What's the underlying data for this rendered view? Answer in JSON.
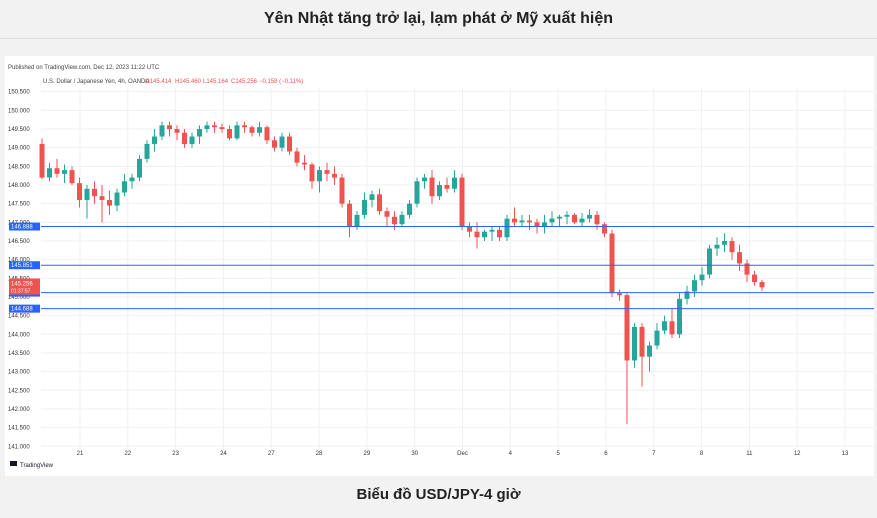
{
  "page": {
    "title": "Yên Nhật tăng trở lại, lạm phát ở Mỹ xuất hiện",
    "caption": "Biểu đồ USD/JPY-4 giờ"
  },
  "colors": {
    "up": "#26a69a",
    "down": "#ef5350",
    "hline": "#2962ff",
    "grid": "#eef0f3",
    "axis_text": "#333333"
  },
  "chart_data": {
    "type": "candlestick",
    "published": "Published on TradingView.com, Dec 12, 2023 11:22 UTC",
    "symbol": "U.S. Dollar / Japanese Yen, 4h, OANDA",
    "ohlc": {
      "o": "O145.414",
      "h": "H145.460",
      "l": "L145.164",
      "c": "C145.256",
      "chg": "−0.158 (−0.11%)"
    },
    "watermark": "TradingView",
    "ylim": [
      140.9,
      150.6
    ],
    "y_ticks": [
      "150.500",
      "150.000",
      "149.500",
      "149.000",
      "148.500",
      "148.000",
      "147.500",
      "147.000",
      "146.500",
      "146.000",
      "145.500",
      "145.000",
      "144.500",
      "144.000",
      "143.500",
      "143.000",
      "142.500",
      "142.000",
      "141.500",
      "141.000"
    ],
    "x_labels": [
      "21",
      "22",
      "23",
      "24",
      "27",
      "28",
      "29",
      "30",
      "Dec",
      "4",
      "5",
      "6",
      "7",
      "8",
      "11",
      "12",
      "13"
    ],
    "levels": [
      {
        "value": 146.888,
        "label": "146.888"
      },
      {
        "value": 145.851,
        "label": "145.851"
      },
      {
        "value": 145.118,
        "label": "145.118"
      },
      {
        "value": 144.688,
        "label": "144.688"
      }
    ],
    "last_price": {
      "value": 145.256,
      "label": "145.256",
      "countdown": "01:37:57"
    },
    "candles": [
      [
        149.1,
        149.25,
        148.15,
        148.2
      ],
      [
        148.2,
        148.6,
        148.1,
        148.45
      ],
      [
        148.45,
        148.7,
        148.2,
        148.3
      ],
      [
        148.3,
        148.55,
        148.05,
        148.4
      ],
      [
        148.4,
        148.5,
        148.0,
        148.05
      ],
      [
        148.05,
        148.2,
        147.4,
        147.6
      ],
      [
        147.6,
        148.0,
        147.1,
        147.9
      ],
      [
        147.9,
        148.1,
        147.5,
        147.7
      ],
      [
        147.7,
        148.0,
        147.0,
        147.6
      ],
      [
        147.6,
        147.85,
        147.2,
        147.45
      ],
      [
        147.45,
        147.9,
        147.3,
        147.8
      ],
      [
        147.8,
        148.3,
        147.7,
        148.1
      ],
      [
        148.1,
        148.3,
        147.9,
        148.2
      ],
      [
        148.2,
        148.8,
        148.1,
        148.7
      ],
      [
        148.7,
        149.2,
        148.6,
        149.1
      ],
      [
        149.1,
        149.5,
        148.9,
        149.3
      ],
      [
        149.3,
        149.7,
        149.2,
        149.6
      ],
      [
        149.6,
        149.7,
        149.3,
        149.5
      ],
      [
        149.5,
        149.6,
        149.2,
        149.4
      ],
      [
        149.4,
        149.5,
        149.0,
        149.1
      ],
      [
        149.1,
        149.4,
        149.0,
        149.3
      ],
      [
        149.3,
        149.6,
        149.1,
        149.5
      ],
      [
        149.5,
        149.7,
        149.4,
        149.6
      ],
      [
        149.6,
        149.7,
        149.4,
        149.55
      ],
      [
        149.55,
        149.65,
        149.4,
        149.5
      ],
      [
        149.5,
        149.6,
        149.2,
        149.25
      ],
      [
        149.25,
        149.7,
        149.2,
        149.6
      ],
      [
        149.6,
        149.7,
        149.4,
        149.55
      ],
      [
        149.55,
        149.6,
        149.3,
        149.4
      ],
      [
        149.4,
        149.7,
        149.3,
        149.55
      ],
      [
        149.55,
        149.6,
        149.1,
        149.2
      ],
      [
        149.2,
        149.3,
        148.9,
        149.0
      ],
      [
        149.0,
        149.4,
        148.9,
        149.3
      ],
      [
        149.3,
        149.4,
        148.8,
        148.9
      ],
      [
        148.9,
        149.0,
        148.5,
        148.6
      ],
      [
        148.6,
        148.8,
        148.4,
        148.55
      ],
      [
        148.55,
        148.6,
        147.9,
        148.1
      ],
      [
        148.1,
        148.5,
        147.8,
        148.4
      ],
      [
        148.4,
        148.6,
        148.1,
        148.3
      ],
      [
        148.3,
        148.5,
        148.0,
        148.2
      ],
      [
        148.2,
        148.3,
        147.4,
        147.5
      ],
      [
        147.5,
        147.6,
        146.6,
        146.9
      ],
      [
        146.9,
        147.3,
        146.8,
        147.2
      ],
      [
        147.2,
        147.8,
        147.1,
        147.6
      ],
      [
        147.6,
        147.85,
        147.4,
        147.75
      ],
      [
        147.75,
        147.9,
        147.2,
        147.3
      ],
      [
        147.3,
        147.4,
        146.9,
        147.15
      ],
      [
        147.15,
        147.3,
        146.8,
        146.95
      ],
      [
        146.95,
        147.3,
        146.9,
        147.2
      ],
      [
        147.2,
        147.6,
        147.1,
        147.5
      ],
      [
        147.5,
        148.2,
        147.4,
        148.1
      ],
      [
        148.1,
        148.3,
        147.9,
        148.2
      ],
      [
        148.2,
        148.4,
        147.5,
        147.7
      ],
      [
        147.7,
        148.1,
        147.6,
        148.0
      ],
      [
        148.0,
        148.2,
        147.8,
        147.9
      ],
      [
        147.9,
        148.4,
        147.8,
        148.2
      ],
      [
        148.2,
        148.3,
        146.8,
        146.9
      ],
      [
        146.9,
        147.0,
        146.6,
        146.75
      ],
      [
        146.75,
        147.0,
        146.3,
        146.6
      ],
      [
        146.6,
        146.8,
        146.5,
        146.75
      ],
      [
        146.75,
        146.9,
        146.5,
        146.8
      ],
      [
        146.8,
        146.9,
        146.5,
        146.6
      ],
      [
        146.6,
        147.2,
        146.5,
        147.1
      ],
      [
        147.1,
        147.4,
        146.9,
        147.0
      ],
      [
        147.0,
        147.2,
        146.9,
        147.05
      ],
      [
        147.05,
        147.2,
        146.8,
        147.0
      ],
      [
        147.0,
        147.1,
        146.7,
        146.9
      ],
      [
        146.9,
        147.2,
        146.7,
        147.0
      ],
      [
        147.0,
        147.3,
        146.9,
        147.1
      ],
      [
        147.1,
        147.2,
        146.9,
        147.15
      ],
      [
        147.15,
        147.3,
        146.95,
        147.2
      ],
      [
        147.2,
        147.25,
        146.95,
        147.0
      ],
      [
        147.0,
        147.25,
        146.9,
        147.1
      ],
      [
        147.1,
        147.35,
        147.0,
        147.2
      ],
      [
        147.2,
        147.3,
        146.8,
        146.95
      ],
      [
        146.95,
        147.0,
        146.6,
        146.7
      ],
      [
        146.7,
        146.8,
        145.0,
        145.1
      ],
      [
        145.1,
        145.2,
        144.9,
        145.05
      ],
      [
        145.05,
        145.1,
        141.6,
        143.3
      ],
      [
        143.3,
        144.3,
        143.1,
        144.2
      ],
      [
        144.2,
        144.3,
        142.6,
        143.4
      ],
      [
        143.4,
        143.8,
        143.0,
        143.7
      ],
      [
        143.7,
        144.3,
        143.6,
        144.1
      ],
      [
        144.1,
        144.5,
        144.0,
        144.35
      ],
      [
        144.35,
        144.7,
        143.9,
        144.0
      ],
      [
        144.0,
        145.1,
        143.9,
        144.95
      ],
      [
        144.95,
        145.3,
        144.8,
        145.15
      ],
      [
        145.15,
        145.6,
        145.0,
        145.45
      ],
      [
        145.45,
        145.8,
        145.3,
        145.6
      ],
      [
        145.6,
        146.4,
        145.5,
        146.3
      ],
      [
        146.3,
        146.6,
        146.1,
        146.4
      ],
      [
        146.4,
        146.7,
        146.2,
        146.5
      ],
      [
        146.5,
        146.6,
        146.0,
        146.2
      ],
      [
        146.2,
        146.4,
        145.7,
        145.9
      ],
      [
        145.9,
        146.0,
        145.4,
        145.6
      ],
      [
        145.6,
        145.7,
        145.3,
        145.4
      ],
      [
        145.4,
        145.46,
        145.16,
        145.26
      ]
    ]
  }
}
